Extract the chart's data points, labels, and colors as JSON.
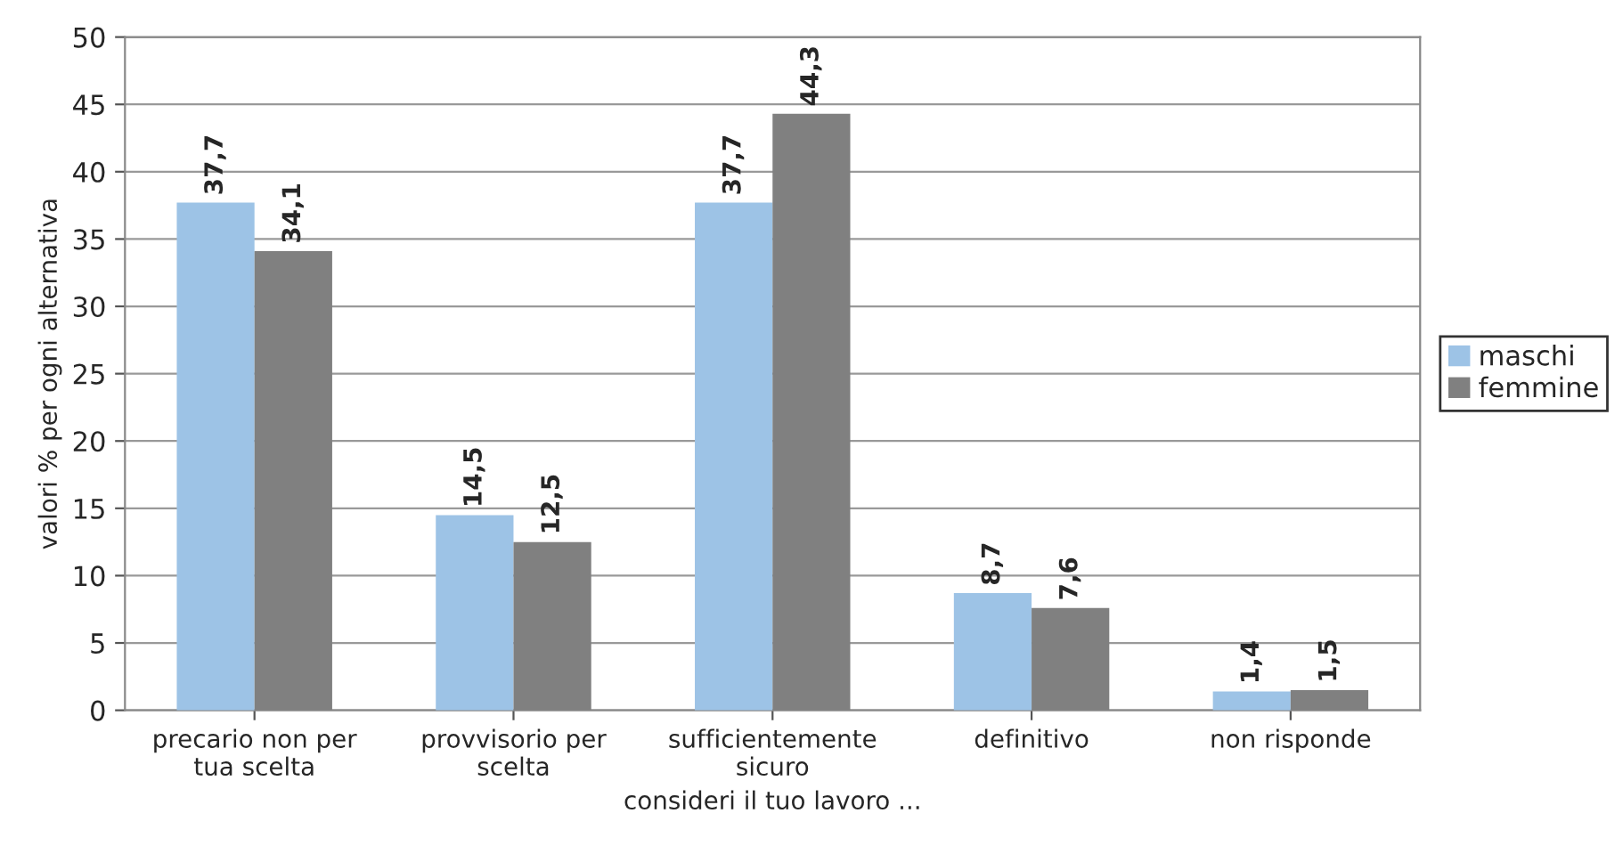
{
  "chart_data": {
    "type": "bar",
    "xlabel": "consideri il tuo lavoro ...",
    "ylabel": "valori % per ogni alternativa",
    "categories": [
      "precario non per\ntua scelta",
      "provvisorio per\nscelta",
      "sufficientemente\nsicuro",
      "definitivo",
      "non risponde"
    ],
    "series": [
      {
        "name": "maschi",
        "color": "#9dc3e6",
        "values": [
          37.7,
          14.5,
          37.7,
          8.7,
          1.4
        ],
        "value_labels": [
          "37,7",
          "14,5",
          "37,7",
          "8,7",
          "1,4"
        ]
      },
      {
        "name": "femmine",
        "color": "#808080",
        "values": [
          34.1,
          12.5,
          44.3,
          7.6,
          1.5
        ],
        "value_labels": [
          "34,1",
          "12,5",
          "44,3",
          "7,6",
          "1,5"
        ]
      }
    ],
    "ylim": [
      0,
      50
    ],
    "yticks": [
      0,
      5,
      10,
      15,
      20,
      25,
      30,
      35,
      40,
      45,
      50
    ],
    "grid": "y",
    "legend": "right"
  }
}
